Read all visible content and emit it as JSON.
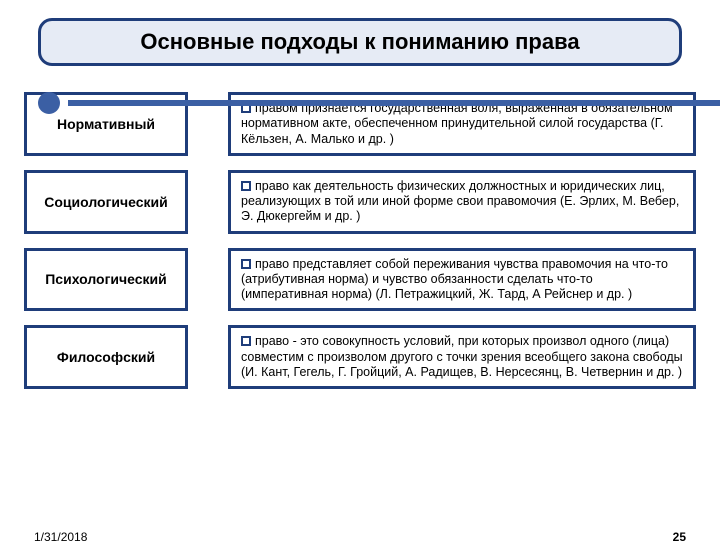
{
  "colors": {
    "border_navy": "#1f3d7a",
    "accent": "#3b5fa4",
    "title_bg": "#e6ebf5",
    "box_bg": "#ffffff",
    "text": "#000000"
  },
  "typography": {
    "title_fontsize": 22,
    "label_fontsize": 14,
    "desc_fontsize": 12.5,
    "footer_fontsize": 12
  },
  "title": "Основные подходы к пониманию права",
  "rows": [
    {
      "label": "Нормативный",
      "desc": "правом признается государственная воля, выраженная в обязательном нормативном акте, обеспеченном принудительной силой государства (Г. Кёльзен, А. Малько и др. )"
    },
    {
      "label": "Социологический",
      "desc": "право как деятельность физических должностных и юридических лиц, реализующих в той или иной форме свои правомочия (Е. Эрлих, М. Вебер, Э. Дюкергейм и др. )"
    },
    {
      "label": "Психологический",
      "desc": "право представляет собой переживания чувства правомочия на что-то (атрибутивная норма) и чувство обязанности сделать что-то (императивная норма) (Л. Петражицкий, Ж. Тард, А Рейснер и др. )"
    },
    {
      "label": "Философский",
      "desc": "право - это совокупность условий, при которых произвол одного (лица) совместим с произволом другого с точки зрения всеобщего закона свободы (И. Кант, Гегель, Г. Гройций, А. Радищев, В. Нерсесянц, В. Четвернин и др. )"
    }
  ],
  "footer": {
    "date": "1/31/2018",
    "page": "25"
  }
}
